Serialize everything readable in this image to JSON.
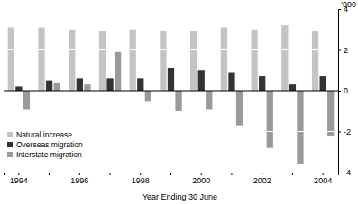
{
  "chart_data": {
    "type": "bar",
    "x_label": "Year Ending 30 June",
    "y_label": "'000",
    "categories": [
      "1994",
      null,
      "1996",
      null,
      "1998",
      null,
      "2000",
      null,
      "2002",
      null,
      "2004"
    ],
    "series": [
      {
        "name": "Natural increase",
        "color": "#c4c4c4",
        "values": [
          3.1,
          3.1,
          3.0,
          2.9,
          3.0,
          2.9,
          2.9,
          3.1,
          3.0,
          3.2,
          2.9
        ]
      },
      {
        "name": "Overseas migration",
        "color": "#333333",
        "values": [
          0.2,
          0.5,
          0.6,
          0.6,
          0.6,
          1.1,
          1.0,
          0.9,
          0.7,
          0.3,
          0.7
        ]
      },
      {
        "name": "Interstate migration",
        "color": "#9a9a9a",
        "values": [
          -0.9,
          0.4,
          0.3,
          1.9,
          -0.5,
          -1.0,
          -0.9,
          -1.7,
          -2.8,
          -3.6,
          -2.2
        ]
      }
    ],
    "ylim": [
      -4,
      4
    ],
    "yticks": [
      -4,
      -2,
      0,
      2,
      4
    ],
    "grid": true,
    "legend": "lower left"
  }
}
